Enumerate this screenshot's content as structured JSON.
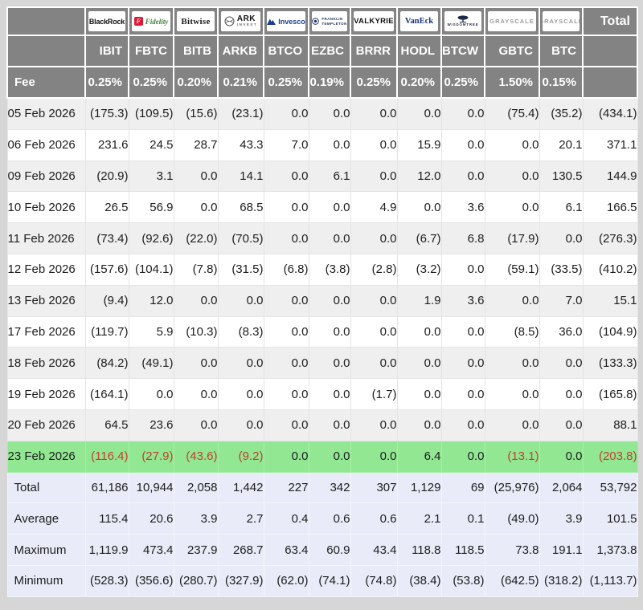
{
  "colors": {
    "header_bg": "#838383",
    "header_text": "#ffffff",
    "row_bg": "#ffffff",
    "row_alt_bg": "#efeff0",
    "highlight_bg": "#92e892",
    "summary_bg": "#e9ecf8",
    "negative": "#e8483c",
    "page_bg": "#d6d6d6"
  },
  "table": {
    "fee_label": "Fee",
    "total_label": "Total",
    "columns": [
      {
        "ticker": "IBIT",
        "fee": "0.25%",
        "provider": "BlackRock",
        "logo": {
          "type": "blackrock",
          "text": "BlackRock"
        }
      },
      {
        "ticker": "FBTC",
        "fee": "0.25%",
        "provider": "Fidelity",
        "logo": {
          "type": "fidelity",
          "badge": "F",
          "text": "Fidelity"
        }
      },
      {
        "ticker": "BITB",
        "fee": "0.20%",
        "provider": "Bitwise",
        "logo": {
          "type": "bitwise",
          "text": "Bitwise"
        }
      },
      {
        "ticker": "ARKB",
        "fee": "0.21%",
        "provider": "ARK Invest",
        "logo": {
          "type": "ark",
          "text": "ARK",
          "sub": "INVEST"
        }
      },
      {
        "ticker": "BTCO",
        "fee": "0.25%",
        "provider": "Invesco",
        "logo": {
          "type": "invesco",
          "text": "Invesco"
        }
      },
      {
        "ticker": "EZBC",
        "fee": "0.19%",
        "provider": "Franklin Templeton",
        "logo": {
          "type": "franklin",
          "line1": "FRANKLIN",
          "line2": "TEMPLETON"
        }
      },
      {
        "ticker": "BRRR",
        "fee": "0.25%",
        "provider": "Valkyrie",
        "logo": {
          "type": "valkyrie",
          "text": "VALKYRIE"
        }
      },
      {
        "ticker": "HODL",
        "fee": "0.20%",
        "provider": "VanEck",
        "logo": {
          "type": "vaneck",
          "text": "VanEck"
        }
      },
      {
        "ticker": "BTCW",
        "fee": "0.25%",
        "provider": "WisdomTree",
        "logo": {
          "type": "wisdomtree",
          "text": "WISDOMTREE"
        }
      },
      {
        "ticker": "GBTC",
        "fee": "1.50%",
        "provider": "Grayscale",
        "logo": {
          "type": "grayscale",
          "text": "GRAYSCALE"
        }
      },
      {
        "ticker": "BTC",
        "fee": "0.15%",
        "provider": "Grayscale",
        "logo": {
          "type": "grayscale",
          "text": "GRAYSCALE"
        }
      }
    ],
    "rows": [
      {
        "date": "05 Feb 2026",
        "values": [
          "(175.3)",
          "(109.5)",
          "(15.6)",
          "(23.1)",
          "0.0",
          "0.0",
          "0.0",
          "0.0",
          "0.0",
          "(75.4)",
          "(35.2)"
        ],
        "total": "(434.1)",
        "highlight": false
      },
      {
        "date": "06 Feb 2026",
        "values": [
          "231.6",
          "24.5",
          "28.7",
          "43.3",
          "7.0",
          "0.0",
          "0.0",
          "15.9",
          "0.0",
          "0.0",
          "20.1"
        ],
        "total": "371.1",
        "highlight": false
      },
      {
        "date": "09 Feb 2026",
        "values": [
          "(20.9)",
          "3.1",
          "0.0",
          "14.1",
          "0.0",
          "6.1",
          "0.0",
          "12.0",
          "0.0",
          "0.0",
          "130.5"
        ],
        "total": "144.9",
        "highlight": false
      },
      {
        "date": "10 Feb 2026",
        "values": [
          "26.5",
          "56.9",
          "0.0",
          "68.5",
          "0.0",
          "0.0",
          "4.9",
          "0.0",
          "3.6",
          "0.0",
          "6.1"
        ],
        "total": "166.5",
        "highlight": false
      },
      {
        "date": "11 Feb 2026",
        "values": [
          "(73.4)",
          "(92.6)",
          "(22.0)",
          "(70.5)",
          "0.0",
          "0.0",
          "0.0",
          "(6.7)",
          "6.8",
          "(17.9)",
          "0.0"
        ],
        "total": "(276.3)",
        "highlight": false
      },
      {
        "date": "12 Feb 2026",
        "values": [
          "(157.6)",
          "(104.1)",
          "(7.8)",
          "(31.5)",
          "(6.8)",
          "(3.8)",
          "(2.8)",
          "(3.2)",
          "0.0",
          "(59.1)",
          "(33.5)"
        ],
        "total": "(410.2)",
        "highlight": false
      },
      {
        "date": "13 Feb 2026",
        "values": [
          "(9.4)",
          "12.0",
          "0.0",
          "0.0",
          "0.0",
          "0.0",
          "0.0",
          "1.9",
          "3.6",
          "0.0",
          "7.0"
        ],
        "total": "15.1",
        "highlight": false
      },
      {
        "date": "17 Feb 2026",
        "values": [
          "(119.7)",
          "5.9",
          "(10.3)",
          "(8.3)",
          "0.0",
          "0.0",
          "0.0",
          "0.0",
          "0.0",
          "(8.5)",
          "36.0"
        ],
        "total": "(104.9)",
        "highlight": false
      },
      {
        "date": "18 Feb 2026",
        "values": [
          "(84.2)",
          "(49.1)",
          "0.0",
          "0.0",
          "0.0",
          "0.0",
          "0.0",
          "0.0",
          "0.0",
          "0.0",
          "0.0"
        ],
        "total": "(133.3)",
        "highlight": false
      },
      {
        "date": "19 Feb 2026",
        "values": [
          "(164.1)",
          "0.0",
          "0.0",
          "0.0",
          "0.0",
          "0.0",
          "(1.7)",
          "0.0",
          "0.0",
          "0.0",
          "0.0"
        ],
        "total": "(165.8)",
        "highlight": false
      },
      {
        "date": "20 Feb 2026",
        "values": [
          "64.5",
          "23.6",
          "0.0",
          "0.0",
          "0.0",
          "0.0",
          "0.0",
          "0.0",
          "0.0",
          "0.0",
          "0.0"
        ],
        "total": "88.1",
        "highlight": false
      },
      {
        "date": "23 Feb 2026",
        "values": [
          "(116.4)",
          "(27.9)",
          "(43.6)",
          "(9.2)",
          "0.0",
          "0.0",
          "0.0",
          "6.4",
          "0.0",
          "(13.1)",
          "0.0"
        ],
        "total": "(203.8)",
        "highlight": true
      }
    ],
    "summary": [
      {
        "label": "Total",
        "values": [
          "61,186",
          "10,944",
          "2,058",
          "1,442",
          "227",
          "342",
          "307",
          "1,129",
          "69",
          "(25,976)",
          "2,064"
        ],
        "total": "53,792"
      },
      {
        "label": "Average",
        "values": [
          "115.4",
          "20.6",
          "3.9",
          "2.7",
          "0.4",
          "0.6",
          "0.6",
          "2.1",
          "0.1",
          "(49.0)",
          "3.9"
        ],
        "total": "101.5"
      },
      {
        "label": "Maximum",
        "values": [
          "1,119.9",
          "473.4",
          "237.9",
          "268.7",
          "63.4",
          "60.9",
          "43.4",
          "118.8",
          "118.5",
          "73.8",
          "191.1"
        ],
        "total": "1,373.8"
      },
      {
        "label": "Minimum",
        "values": [
          "(528.3)",
          "(356.6)",
          "(280.7)",
          "(327.9)",
          "(62.0)",
          "(74.1)",
          "(74.8)",
          "(38.4)",
          "(53.8)",
          "(642.5)",
          "(318.2)"
        ],
        "total": "(1,113.7)"
      }
    ]
  }
}
